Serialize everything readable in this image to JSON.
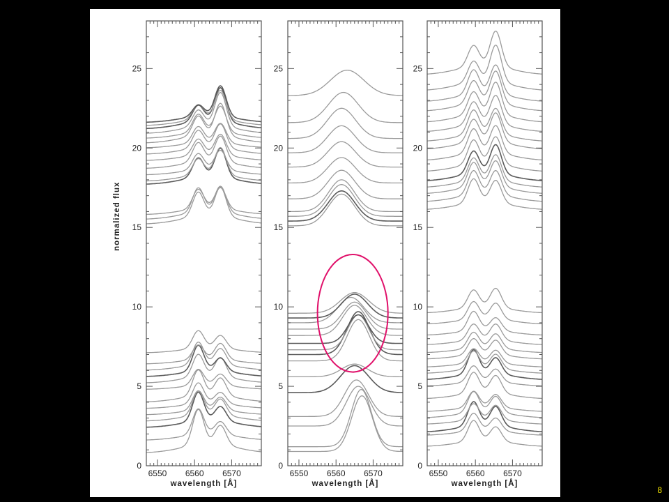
{
  "slide": {
    "number": "8"
  },
  "colors": {
    "background": "#000000",
    "figure": "#ffffff",
    "frame": "#555555",
    "spectrum": "#9a9a9a",
    "spectrum_dark": "#5a5a5a",
    "highlight": "#e0106a",
    "slide_number": "#f2e300"
  },
  "chart_data": [
    {
      "type": "line",
      "panel": "left",
      "xlabel": "wavelength [Å]",
      "ylabel": "normalized flux",
      "xlim": [
        6547,
        6578
      ],
      "ylim": [
        0,
        28
      ],
      "xticks": [
        "6550",
        "6560",
        "6570"
      ],
      "yticks": [
        "0",
        "5",
        "10",
        "15",
        "20",
        "25"
      ],
      "profile": "double-peak",
      "peak_positions": [
        6561,
        6567
      ],
      "series": [
        {
          "baseline": 0.8,
          "p1": 2.2,
          "p2": 1.2
        },
        {
          "baseline": 1.6,
          "p1": 1.6,
          "p2": 0.8
        },
        {
          "baseline": 2.4,
          "p1": 1.8,
          "p2": 0.9,
          "dark": true
        },
        {
          "baseline": 2.8,
          "p1": 1.5,
          "p2": 1.0
        },
        {
          "baseline": 3.2,
          "p1": 1.2,
          "p2": 0.8
        },
        {
          "baseline": 3.6,
          "p1": 1.3,
          "p2": 0.7
        },
        {
          "baseline": 4.0,
          "p1": 1.6,
          "p2": 1.1
        },
        {
          "baseline": 4.8,
          "p1": 1.0,
          "p2": 0.7
        },
        {
          "baseline": 5.2,
          "p1": 1.4,
          "p2": 1.2
        },
        {
          "baseline": 5.6,
          "p1": 1.6,
          "p2": 0.8,
          "dark": true
        },
        {
          "baseline": 6.0,
          "p1": 1.4,
          "p2": 1.0
        },
        {
          "baseline": 6.4,
          "p1": 0.9,
          "p2": 1.0
        },
        {
          "baseline": 7.1,
          "p1": 1.1,
          "p2": 0.8
        },
        {
          "baseline": 15.2,
          "p1": 1.5,
          "p2": 1.8
        },
        {
          "baseline": 15.5,
          "p1": 1.5,
          "p2": 1.6
        },
        {
          "baseline": 15.8,
          "p1": 1.2,
          "p2": 1.3
        },
        {
          "baseline": 17.7,
          "p1": 1.2,
          "p2": 1.8,
          "dark": true
        },
        {
          "baseline": 17.9,
          "p1": 1.0,
          "p2": 1.7
        },
        {
          "baseline": 18.3,
          "p1": 1.0,
          "p2": 1.2
        },
        {
          "baseline": 18.7,
          "p1": 1.2,
          "p2": 1.6
        },
        {
          "baseline": 19.2,
          "p1": 1.0,
          "p2": 1.3
        },
        {
          "baseline": 19.6,
          "p1": 1.1,
          "p2": 1.5
        },
        {
          "baseline": 20.0,
          "p1": 1.0,
          "p2": 1.2
        },
        {
          "baseline": 20.3,
          "p1": 1.2,
          "p2": 2.0
        },
        {
          "baseline": 20.6,
          "p1": 1.1,
          "p2": 1.6
        },
        {
          "baseline": 20.9,
          "p1": 1.0,
          "p2": 2.1
        },
        {
          "baseline": 21.2,
          "p1": 1.0,
          "p2": 2.1,
          "dark": true
        },
        {
          "baseline": 21.4,
          "p1": 0.9,
          "p2": 1.8
        },
        {
          "baseline": 21.6,
          "p1": 0.7,
          "p2": 1.9,
          "dark": true
        }
      ]
    },
    {
      "type": "line",
      "panel": "middle",
      "xlabel": "wavelength [Å]",
      "ylabel": "",
      "xlim": [
        6547,
        6578
      ],
      "ylim": [
        0,
        28
      ],
      "xticks": [
        "6550",
        "6560",
        "6570"
      ],
      "yticks": [
        "0",
        "5",
        "10",
        "15",
        "20",
        "25"
      ],
      "profile": "mixed",
      "series": [
        {
          "baseline": 0.9,
          "amp": 3.5,
          "center": 6567,
          "width": 2.8
        },
        {
          "baseline": 1.2,
          "amp": 3.6,
          "center": 6566.8,
          "width": 2.7
        },
        {
          "baseline": 2.5,
          "amp": 2.5,
          "center": 6566,
          "width": 3.2
        },
        {
          "baseline": 3.1,
          "amp": 2.3,
          "center": 6565.5,
          "width": 3.2
        },
        {
          "baseline": 4.6,
          "amp": 1.7,
          "center": 6565,
          "width": 3.8,
          "dark": true
        },
        {
          "baseline": 5.6,
          "amp": 0.8,
          "center": 6565,
          "width": 3.5
        },
        {
          "baseline": 6.6,
          "amp": 2.6,
          "center": 6566,
          "width": 3.0
        },
        {
          "baseline": 7.0,
          "amp": 2.7,
          "center": 6566,
          "width": 3.0,
          "dark": true
        },
        {
          "baseline": 7.3,
          "amp": 2.2,
          "center": 6566,
          "width": 2.8
        },
        {
          "baseline": 7.7,
          "amp": 1.8,
          "center": 6566,
          "width": 2.8,
          "dark": true
        },
        {
          "baseline": 8.2,
          "amp": 1.9,
          "center": 6565,
          "width": 3.2
        },
        {
          "baseline": 8.6,
          "amp": 1.7,
          "center": 6565,
          "width": 3.2
        },
        {
          "baseline": 9.0,
          "amp": 1.6,
          "center": 6564,
          "width": 3.5
        },
        {
          "baseline": 9.3,
          "amp": 1.5,
          "center": 6565,
          "width": 3.5,
          "dark": true
        },
        {
          "baseline": 9.6,
          "amp": 1.3,
          "center": 6565,
          "width": 3.8
        },
        {
          "baseline": 15.1,
          "amp": 2.0,
          "center": 6561.5,
          "width": 3.6
        },
        {
          "baseline": 15.4,
          "amp": 1.9,
          "center": 6561.5,
          "width": 3.6,
          "dark": true
        },
        {
          "baseline": 15.7,
          "amp": 2.0,
          "center": 6561.5,
          "width": 3.5
        },
        {
          "baseline": 16.0,
          "amp": 2.0,
          "center": 6561.5,
          "width": 3.5
        },
        {
          "baseline": 16.8,
          "amp": 1.8,
          "center": 6561.5,
          "width": 3.6
        },
        {
          "baseline": 17.8,
          "amp": 1.6,
          "center": 6561.5,
          "width": 3.7
        },
        {
          "baseline": 18.8,
          "amp": 1.6,
          "center": 6561.5,
          "width": 3.7
        },
        {
          "baseline": 19.7,
          "amp": 1.7,
          "center": 6561.5,
          "width": 3.7
        },
        {
          "baseline": 20.6,
          "amp": 1.9,
          "center": 6561.5,
          "width": 3.8
        },
        {
          "baseline": 21.6,
          "amp": 1.9,
          "center": 6562,
          "width": 4.0
        },
        {
          "baseline": 23.3,
          "amp": 1.6,
          "center": 6563,
          "width": 4.5
        }
      ],
      "annotation": {
        "shape": "ellipse",
        "x_center": 6564.5,
        "y_center": 9.6,
        "x_radius": 9.5,
        "y_radius": 3.7
      }
    },
    {
      "type": "line",
      "panel": "right",
      "xlabel": "wavelength [Å]",
      "ylabel": "",
      "xlim": [
        6547,
        6578
      ],
      "ylim": [
        0,
        28
      ],
      "xticks": [
        "6550",
        "6560",
        "6570"
      ],
      "yticks": [
        "0",
        "5",
        "10",
        "15",
        "20",
        "25"
      ],
      "profile": "double-peak",
      "peak_positions": [
        6559.5,
        6565.5
      ],
      "series": [
        {
          "baseline": 1.2,
          "p1": 1.3,
          "p2": 0.9
        },
        {
          "baseline": 1.9,
          "p1": 1.1,
          "p2": 0.8
        },
        {
          "baseline": 2.1,
          "p1": 1.5,
          "p2": 1.2,
          "dark": true
        },
        {
          "baseline": 2.6,
          "p1": 1.0,
          "p2": 0.9
        },
        {
          "baseline": 3.0,
          "p1": 1.3,
          "p2": 1.0
        },
        {
          "baseline": 3.4,
          "p1": 1.0,
          "p2": 0.8
        },
        {
          "baseline": 4.2,
          "p1": 1.3,
          "p2": 1.1
        },
        {
          "baseline": 5.0,
          "p1": 1.0,
          "p2": 0.8
        },
        {
          "baseline": 5.4,
          "p1": 1.5,
          "p2": 1.0,
          "dark": true
        },
        {
          "baseline": 5.8,
          "p1": 1.1,
          "p2": 0.9
        },
        {
          "baseline": 6.2,
          "p1": 0.9,
          "p2": 0.8
        },
        {
          "baseline": 6.7,
          "p1": 1.0,
          "p2": 0.9
        },
        {
          "baseline": 7.1,
          "p1": 1.0,
          "p2": 0.9
        },
        {
          "baseline": 7.6,
          "p1": 1.0,
          "p2": 1.0
        },
        {
          "baseline": 8.2,
          "p1": 1.2,
          "p2": 0.8
        },
        {
          "baseline": 8.9,
          "p1": 1.1,
          "p2": 1.0
        },
        {
          "baseline": 9.6,
          "p1": 1.1,
          "p2": 1.2
        },
        {
          "baseline": 16.1,
          "p1": 1.5,
          "p2": 1.4
        },
        {
          "baseline": 16.6,
          "p1": 1.5,
          "p2": 1.5
        },
        {
          "baseline": 17.1,
          "p1": 1.5,
          "p2": 1.6
        },
        {
          "baseline": 17.5,
          "p1": 1.4,
          "p2": 1.6
        },
        {
          "baseline": 17.9,
          "p1": 1.4,
          "p2": 1.8,
          "dark": true
        },
        {
          "baseline": 18.5,
          "p1": 1.5,
          "p2": 1.7
        },
        {
          "baseline": 19.2,
          "p1": 1.5,
          "p2": 1.7
        },
        {
          "baseline": 19.9,
          "p1": 1.4,
          "p2": 1.8
        },
        {
          "baseline": 20.4,
          "p1": 1.5,
          "p2": 1.6
        },
        {
          "baseline": 21.0,
          "p1": 1.4,
          "p2": 1.8
        },
        {
          "baseline": 21.6,
          "p1": 1.4,
          "p2": 2.0
        },
        {
          "baseline": 22.3,
          "p1": 1.4,
          "p2": 2.0
        },
        {
          "baseline": 22.9,
          "p1": 1.5,
          "p2": 1.8
        },
        {
          "baseline": 23.6,
          "p1": 1.3,
          "p2": 2.3
        },
        {
          "baseline": 24.6,
          "p1": 1.3,
          "p2": 2.2
        }
      ]
    }
  ]
}
